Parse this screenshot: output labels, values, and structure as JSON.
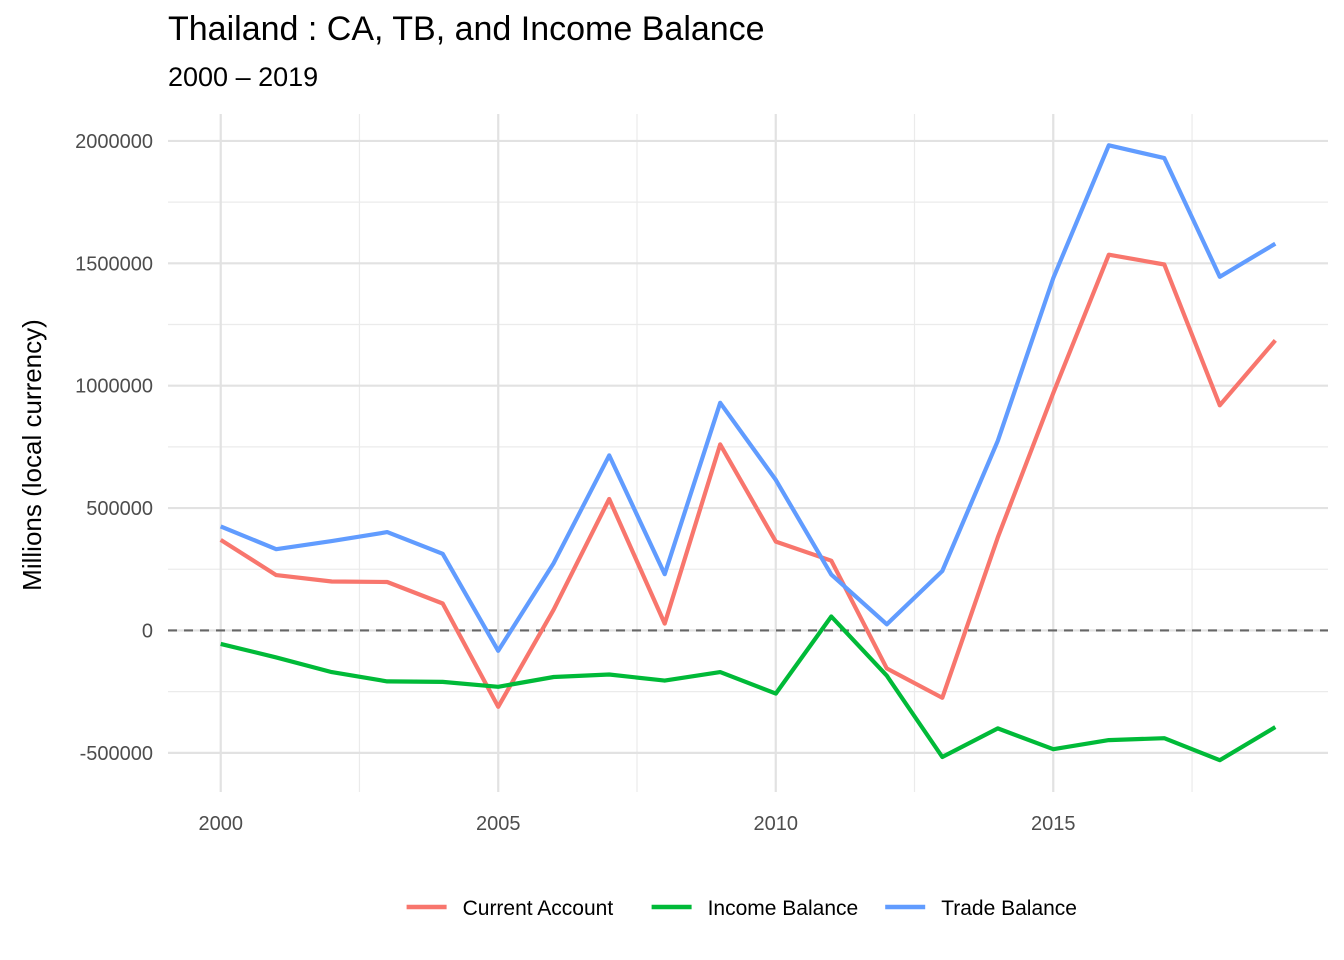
{
  "chart_data": {
    "type": "line",
    "title": "Thailand : CA, TB, and Income Balance",
    "subtitle": "2000 – 2019",
    "xlabel": "",
    "ylabel": "Millions (local currency)",
    "x": [
      2000,
      2001,
      2002,
      2003,
      2004,
      2005,
      2006,
      2007,
      2008,
      2009,
      2010,
      2011,
      2012,
      2013,
      2014,
      2015,
      2016,
      2017,
      2018,
      2019
    ],
    "xlim": [
      1999.05,
      2019.95
    ],
    "ylim": [
      -660000,
      2110000
    ],
    "x_ticks": [
      2000,
      2005,
      2010,
      2015
    ],
    "y_ticks": [
      -500000,
      0,
      500000,
      1000000,
      1500000,
      2000000
    ],
    "x_tick_labels": [
      "2000",
      "2005",
      "2010",
      "2015"
    ],
    "y_tick_labels": [
      "-500000",
      "0",
      "500000",
      "1000000",
      "1500000",
      "2000000"
    ],
    "grid": true,
    "reference_line": {
      "y": 0,
      "style": "dashed"
    },
    "legend_position": "bottom",
    "series": [
      {
        "name": "Current Account",
        "color": "#F8766D",
        "values": [
          370000,
          226000,
          200000,
          198000,
          110000,
          -312000,
          85000,
          537000,
          28000,
          760000,
          363000,
          285000,
          -155000,
          -275000,
          380000,
          970000,
          1535000,
          1495000,
          920000,
          1185000
        ]
      },
      {
        "name": "Income Balance",
        "color": "#00BA38",
        "values": [
          -55000,
          -110000,
          -170000,
          -208000,
          -210000,
          -230000,
          -190000,
          -180000,
          -205000,
          -170000,
          -258000,
          57000,
          -185000,
          -517000,
          -400000,
          -485000,
          -448000,
          -440000,
          -530000,
          -395000
        ]
      },
      {
        "name": "Trade Balance",
        "color": "#619CFF",
        "values": [
          425000,
          332000,
          365000,
          402000,
          313000,
          -83000,
          275000,
          715000,
          230000,
          930000,
          615000,
          228000,
          25000,
          243000,
          775000,
          1440000,
          1982000,
          1930000,
          1445000,
          1580000
        ]
      }
    ]
  }
}
